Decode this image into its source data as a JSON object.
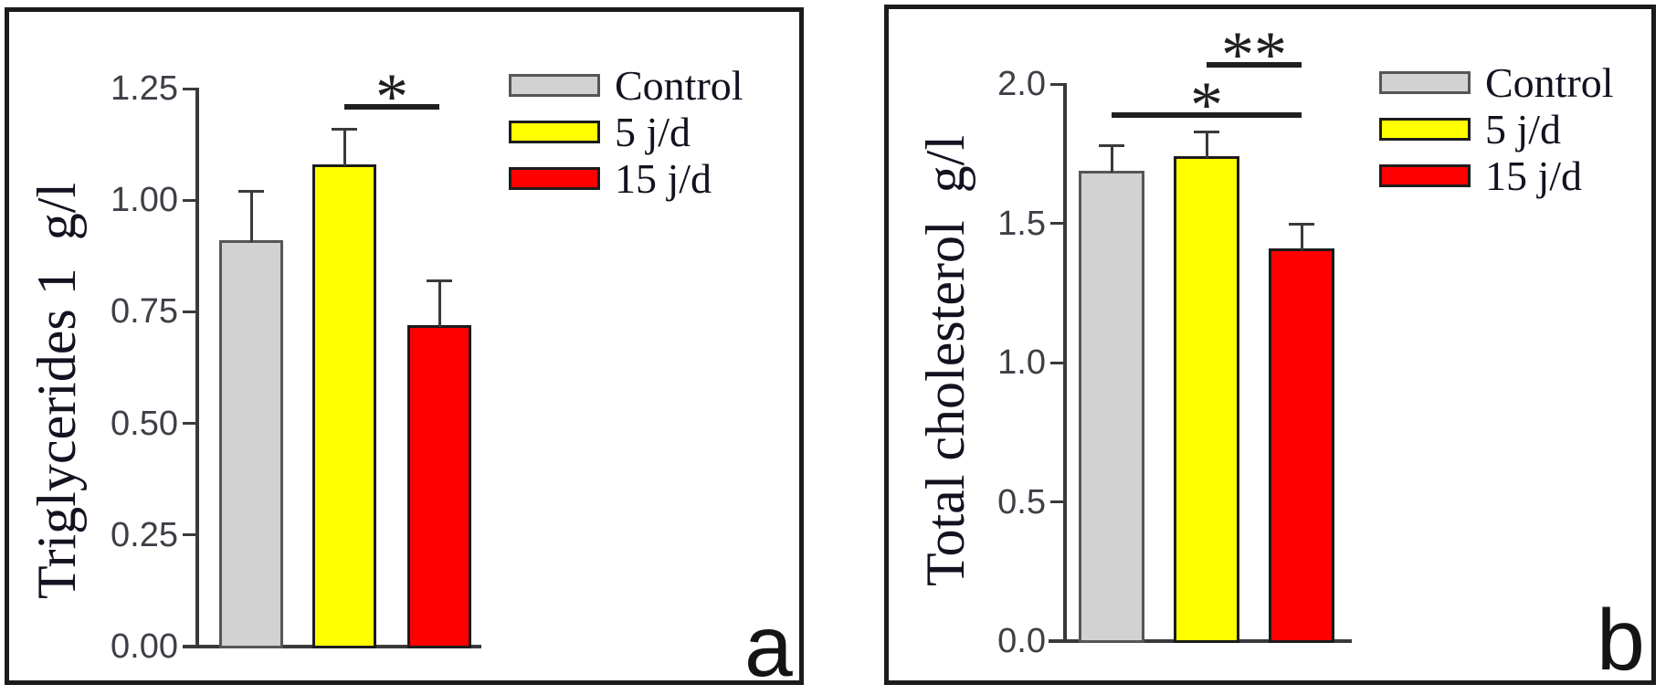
{
  "figure": {
    "background": "#ffffff",
    "panel_labels": [
      "a",
      "b"
    ]
  },
  "colors": {
    "axis": "#3a3a3c",
    "error_bar": "#3a3a3c",
    "significance": "#1f1f1f",
    "tick_text": "#3f3f47",
    "label_text": "#121220",
    "frame": "#1b1b1b"
  },
  "legend": {
    "position": "upper right",
    "items": [
      {
        "label": "Control",
        "color": "#d2d2d2",
        "border": "#55555a"
      },
      {
        "label": "5 j/d",
        "color": "#ffff00",
        "border": "#1c1c1c"
      },
      {
        "label": "15 j/d",
        "color": "#ff0000",
        "border": "#1c1c1c"
      }
    ]
  },
  "chart_data": [
    {
      "type": "bar",
      "panel_label": "a",
      "title": "",
      "xlabel": "",
      "ylabel": "Triglycerides 1  g/l",
      "categories": [
        "Control",
        "5 j/d",
        "15 j/d"
      ],
      "values": [
        0.91,
        1.08,
        0.72
      ],
      "errors": [
        0.11,
        0.08,
        0.1
      ],
      "bar_colors": [
        "#d2d2d2",
        "#ffff00",
        "#ff0000"
      ],
      "bar_border_colors": [
        "#55555a",
        "#1c1c1c",
        "#1c1c1c"
      ],
      "ylim": [
        0,
        1.25
      ],
      "yticks": [
        "0.00",
        "0.25",
        "0.50",
        "0.75",
        "1.00",
        "1.25"
      ],
      "grid": false,
      "legend_position": "upper right",
      "significance": [
        {
          "label": "*",
          "from": 1,
          "to": 2,
          "y": 1.21
        }
      ]
    },
    {
      "type": "bar",
      "panel_label": "b",
      "title": "",
      "xlabel": "",
      "ylabel": "Total cholesterol  g/l",
      "categories": [
        "Control",
        "5 j/d",
        "15 j/d"
      ],
      "values": [
        1.69,
        1.74,
        1.41
      ],
      "errors": [
        0.09,
        0.09,
        0.09
      ],
      "bar_colors": [
        "#d2d2d2",
        "#ffff00",
        "#ff0000"
      ],
      "bar_border_colors": [
        "#55555a",
        "#1c1c1c",
        "#1c1c1c"
      ],
      "ylim": [
        0,
        2.0
      ],
      "yticks": [
        "0.0",
        "0.5",
        "1.0",
        "1.5",
        "2.0"
      ],
      "grid": false,
      "legend_position": "upper right",
      "significance": [
        {
          "label": "*",
          "from": 0,
          "to": 2,
          "y": 1.89
        },
        {
          "label": "**",
          "from": 1,
          "to": 2,
          "y": 2.07
        }
      ]
    }
  ]
}
